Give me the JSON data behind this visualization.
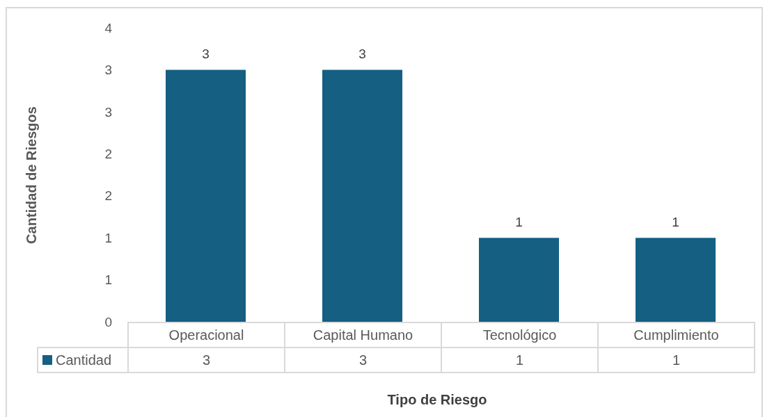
{
  "chart_data": {
    "type": "bar",
    "xlabel": "Tipo de Riesgo",
    "ylabel": "Cantidad de Riesgos",
    "categories": [
      "Operacional",
      "Capital Humano",
      "Tecnológico",
      "Cumplimiento"
    ],
    "series": [
      {
        "name": "Cantidad",
        "color": "#145f82",
        "values": [
          3,
          3,
          1,
          1
        ]
      }
    ],
    "ylim": [
      0,
      3.5
    ],
    "yticks": [
      0,
      {
        "value": 0.5,
        "label": "1"
      },
      1,
      {
        "value": 1.5,
        "label": "2"
      },
      2,
      {
        "value": 2.5,
        "label": "3"
      },
      3,
      {
        "value": 3.5,
        "label": "4"
      }
    ],
    "grid": false,
    "legend": "bottom",
    "data_labels": true,
    "annotations": [
      "3",
      "3",
      "1",
      "1"
    ]
  }
}
